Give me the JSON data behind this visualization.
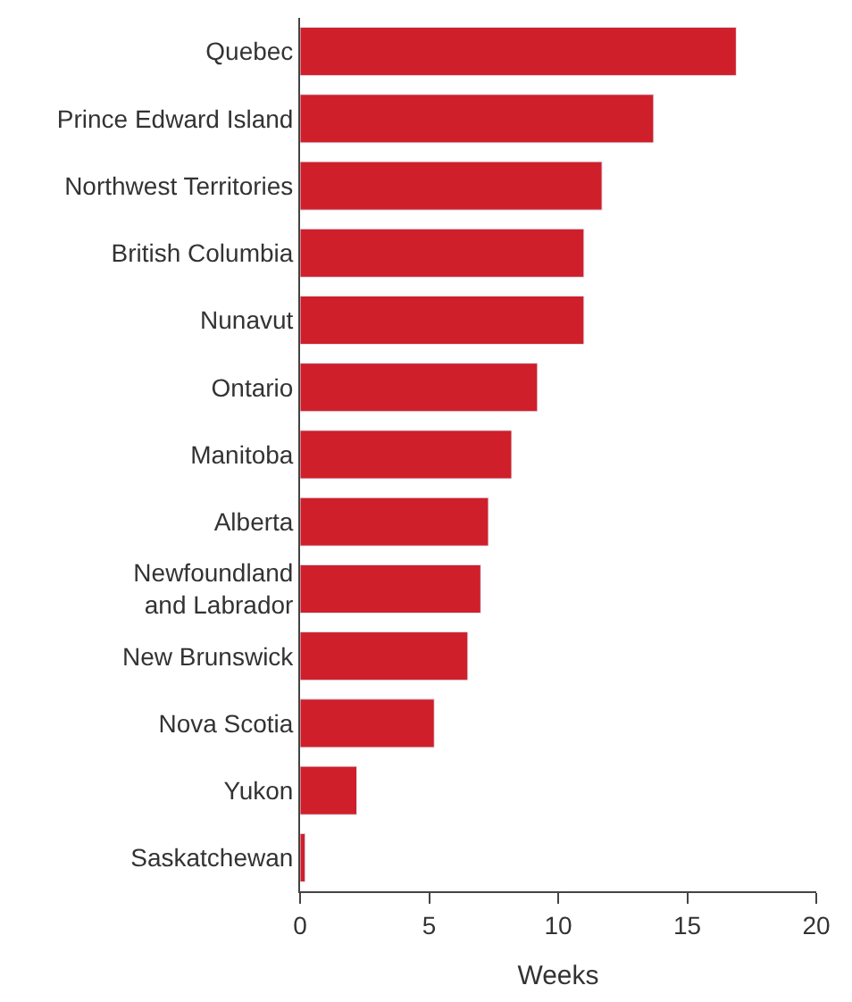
{
  "chart_data": {
    "type": "bar",
    "orientation": "horizontal",
    "xlabel": "Weeks",
    "categories": [
      "Quebec",
      "Prince Edward Island",
      "Northwest Territories",
      "British Columbia",
      "Nunavut",
      "Ontario",
      "Manitoba",
      "Alberta",
      "Newfoundland\nand Labrador",
      "New Brunswick",
      "Nova Scotia",
      "Yukon",
      "Saskatchewan"
    ],
    "values": [
      16.9,
      13.7,
      11.7,
      11.0,
      11.0,
      9.2,
      8.2,
      7.3,
      7.0,
      6.5,
      5.2,
      2.2,
      0.2
    ],
    "color": "#cf1f2a",
    "xlim": [
      0,
      20
    ],
    "xticks": [
      0,
      5,
      10,
      15,
      20
    ],
    "legend": false
  }
}
